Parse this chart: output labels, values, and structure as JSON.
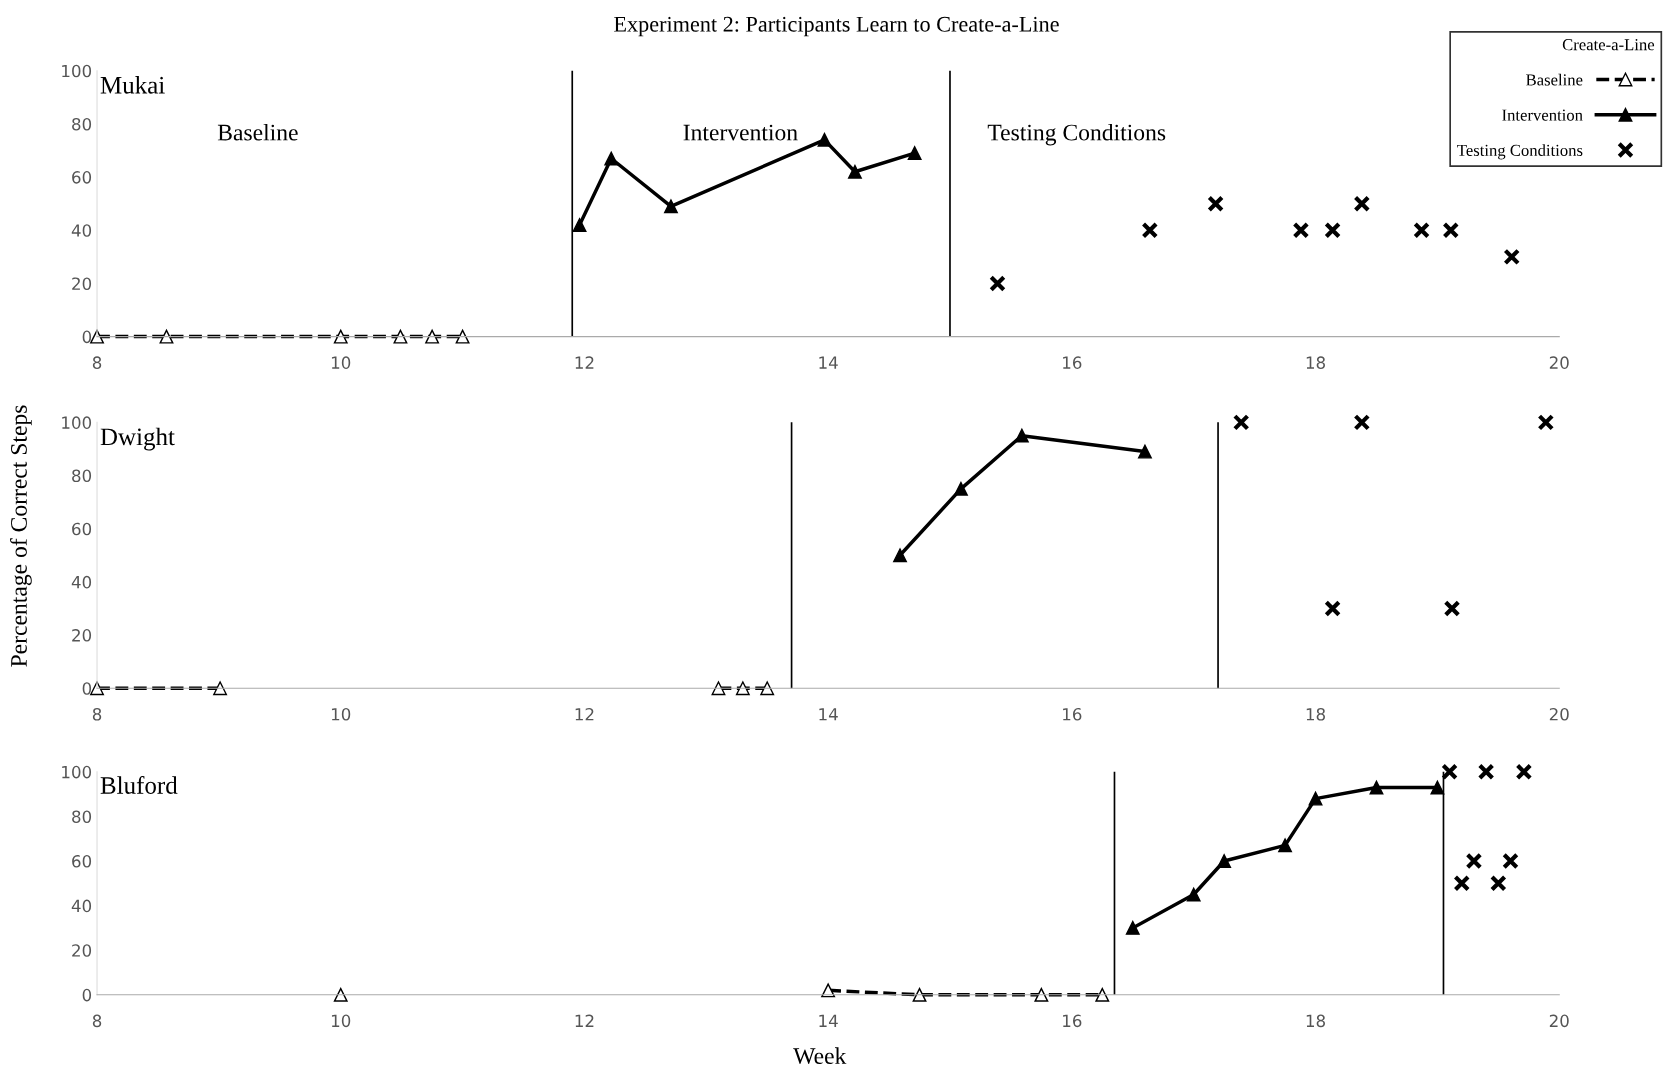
{
  "chart_data": [
    {
      "type": "line",
      "title": "Experiment 2: Participants Learn to Create-a-Line",
      "ylabel": "Percentage of Correct Steps",
      "legend_title": "Create-a-Line",
      "legend": "top right",
      "xlim": [
        8,
        20
      ],
      "xticks": [
        8,
        10,
        {
          "value": 12,
          "label": "12"
        },
        14,
        16,
        18,
        20
      ],
      "ylim": [
        0,
        100
      ],
      "yticks": [
        0,
        20,
        40,
        60,
        80,
        100
      ],
      "grid": false,
      "annotations": [
        "Mukai",
        "Baseline",
        "Intervention",
        "Testing Conditions"
      ],
      "ref_lines": [
        {
          "axis": "x",
          "value": 11.9,
          "color": "#000000"
        },
        {
          "axis": "x",
          "value": 15,
          "color": "#000000"
        }
      ],
      "series": [
        {
          "name": "Baseline",
          "type": "line",
          "color": "#000000",
          "marker": "triangle",
          "line_style": "dashed",
          "x": [
            8,
            8.57,
            10,
            10.49,
            10.75,
            11.0
          ],
          "values": [
            0,
            0,
            0,
            0,
            0,
            0
          ]
        },
        {
          "name": "Intervention",
          "type": "line",
          "color": "#000000",
          "marker": "triangle",
          "line_style": "solid",
          "x": [
            11.96,
            12.22,
            12.71,
            13.97,
            14.22,
            14.71
          ],
          "values": [
            42,
            67,
            49,
            74,
            62,
            69
          ]
        },
        {
          "name": "Testing Conditions",
          "type": "scatter",
          "color": "#000000",
          "marker": "cross",
          "x": [
            15.39,
            16.64,
            17.18,
            17.88,
            18.14,
            18.38,
            18.87,
            19.11,
            19.61
          ],
          "values": [
            20,
            40,
            50,
            40,
            40,
            50,
            40,
            40,
            30
          ]
        }
      ]
    },
    {
      "type": "line",
      "xlim": [
        8,
        20
      ],
      "xticks": [
        8,
        10,
        12,
        14,
        16,
        18,
        20
      ],
      "ylim": [
        0,
        100
      ],
      "yticks": [
        0,
        20,
        40,
        60,
        80,
        100
      ],
      "grid": false,
      "annotations": [
        "Dwight"
      ],
      "ref_lines": [
        {
          "axis": "x",
          "value": 13.7,
          "color": "#000000"
        },
        {
          "axis": "x",
          "value": 17.2,
          "color": "#000000"
        }
      ],
      "series": [
        {
          "type": "line",
          "color": "#000000",
          "marker": "triangle",
          "line_style": "dashed",
          "x": [
            8,
            9.01,
            11,
            13.1,
            13.3,
            13.5
          ],
          "values": [
            0,
            0,
            null,
            0,
            0,
            0
          ]
        },
        {
          "type": "line",
          "color": "#000000",
          "marker": "triangle",
          "line_style": "solid",
          "x": [
            14.59,
            15.09,
            15.59,
            16.6
          ],
          "values": [
            50,
            75,
            95,
            89
          ]
        },
        {
          "type": "scatter",
          "color": "#000000",
          "marker": "cross",
          "x": [
            17.39,
            18.38,
            19.89,
            18.14,
            19.12
          ],
          "values": [
            100,
            100,
            100,
            30,
            30
          ]
        }
      ]
    },
    {
      "type": "line",
      "xlabel": "Week",
      "xlim": [
        8,
        20
      ],
      "xticks": [
        8,
        10,
        12,
        14,
        16,
        18,
        20
      ],
      "ylim": [
        0,
        100
      ],
      "yticks": [
        0,
        20,
        40,
        60,
        80,
        100
      ],
      "grid": false,
      "annotations": [
        "Bluford"
      ],
      "ref_lines": [
        {
          "axis": "x",
          "value": 16.35,
          "color": "#000000"
        },
        {
          "axis": "x",
          "value": 19.05,
          "color": "#000000"
        }
      ],
      "series": [
        {
          "type": "line",
          "color": "#000000",
          "marker": "triangle",
          "line_style": "dashed",
          "x": [
            10,
            12,
            14.0,
            14.75,
            15.75,
            16.25
          ],
          "values": [
            0,
            null,
            2,
            0,
            0,
            0
          ]
        },
        {
          "type": "line",
          "color": "#000000",
          "marker": "triangle",
          "line_style": "solid",
          "x": [
            16.5,
            17.0,
            17.25,
            17.75,
            18.0,
            18.5,
            19.0
          ],
          "values": [
            30,
            45,
            60,
            67,
            88,
            93,
            93
          ]
        },
        {
          "type": "scatter",
          "color": "#000000",
          "marker": "cross",
          "x": [
            19.1,
            19.4,
            19.71,
            19.2,
            19.3,
            19.5,
            19.6
          ],
          "values": [
            100,
            100,
            100,
            50,
            60,
            50,
            60
          ]
        }
      ]
    }
  ]
}
